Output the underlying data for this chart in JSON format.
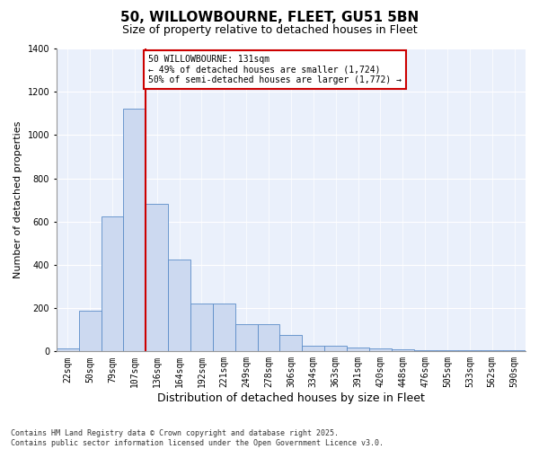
{
  "title": "50, WILLOWBOURNE, FLEET, GU51 5BN",
  "subtitle": "Size of property relative to detached houses in Fleet",
  "xlabel": "Distribution of detached houses by size in Fleet",
  "ylabel": "Number of detached properties",
  "bar_color": "#ccd9f0",
  "bar_edge_color": "#5b8cc8",
  "bin_labels": [
    "22sqm",
    "50sqm",
    "79sqm",
    "107sqm",
    "136sqm",
    "164sqm",
    "192sqm",
    "221sqm",
    "249sqm",
    "278sqm",
    "306sqm",
    "334sqm",
    "363sqm",
    "391sqm",
    "420sqm",
    "448sqm",
    "476sqm",
    "505sqm",
    "533sqm",
    "562sqm",
    "590sqm"
  ],
  "bar_values": [
    15,
    190,
    625,
    1120,
    680,
    425,
    220,
    220,
    125,
    125,
    75,
    25,
    25,
    20,
    15,
    10,
    5,
    5,
    5,
    5,
    5
  ],
  "red_line_bin_index": 4,
  "annotation_title": "50 WILLOWBOURNE: 131sqm",
  "annotation_line1": "← 49% of detached houses are smaller (1,724)",
  "annotation_line2": "50% of semi-detached houses are larger (1,772) →",
  "annotation_box_color": "#ffffff",
  "annotation_box_edge": "#cc0000",
  "ylim": [
    0,
    1400
  ],
  "yticks": [
    0,
    200,
    400,
    600,
    800,
    1000,
    1200,
    1400
  ],
  "bg_color": "#eaf0fb",
  "footer": "Contains HM Land Registry data © Crown copyright and database right 2025.\nContains public sector information licensed under the Open Government Licence v3.0.",
  "red_line_color": "#cc0000",
  "title_fontsize": 11,
  "subtitle_fontsize": 9,
  "ylabel_fontsize": 8,
  "xlabel_fontsize": 9,
  "tick_fontsize": 7,
  "annotation_fontsize": 7,
  "footer_fontsize": 6
}
